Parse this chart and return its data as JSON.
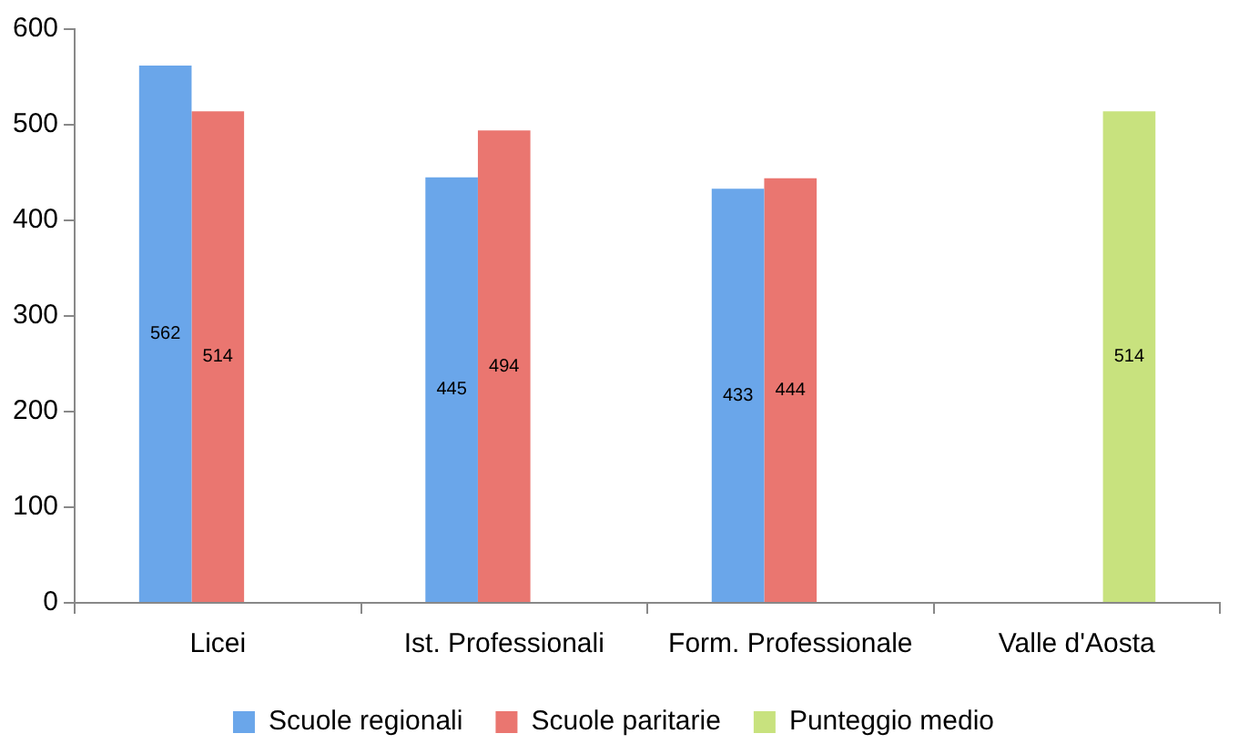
{
  "chart_data": {
    "type": "bar",
    "categories": [
      "Licei",
      "Ist. Professionali",
      "Form. Professionale",
      "Valle d'Aosta"
    ],
    "series": [
      {
        "name": "Scuole regionali",
        "color": "#6aa6ea",
        "values": [
          562,
          445,
          433,
          null
        ]
      },
      {
        "name": "Scuole paritarie",
        "color": "#ea7670",
        "values": [
          514,
          494,
          444,
          null
        ]
      },
      {
        "name": "Punteggio medio",
        "color": "#c8e27e",
        "values": [
          null,
          null,
          null,
          514
        ]
      }
    ],
    "ylim": [
      0,
      600
    ],
    "yticks": [
      0,
      100,
      200,
      300,
      400,
      500,
      600
    ],
    "grid": false,
    "legend": "bottom",
    "data_labels": true
  }
}
